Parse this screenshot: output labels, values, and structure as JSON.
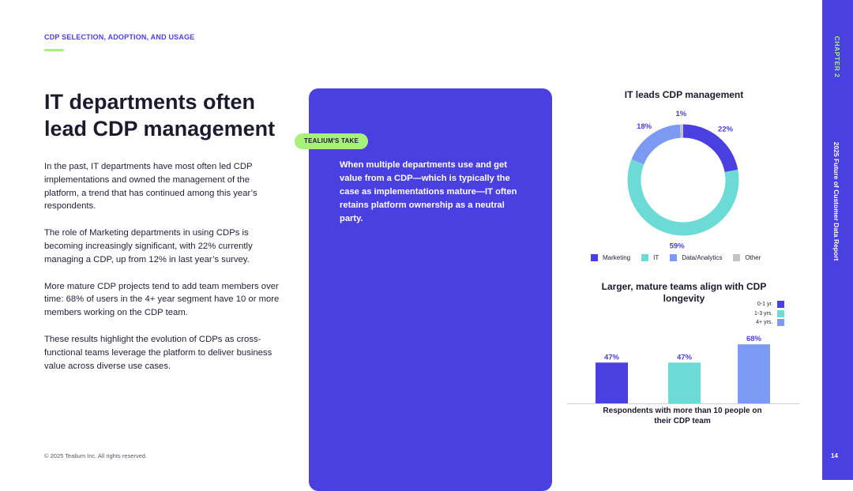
{
  "section_label": "CDP SELECTION, ADOPTION, AND USAGE",
  "headline": "IT departments often lead CDP management",
  "body_paragraphs": [
    "In the past, IT departments have most often led CDP implementations and owned the management of the platform, a trend that has continued among this year’s respondents.",
    "The role of Marketing departments in using CDPs is becoming increasingly significant, with 22% currently managing a CDP, up from 12% in last year’s survey.",
    "More mature CDP projects tend to add team members over time: 68% of users in the 4+ year segment have 10 or more members working on the CDP team.",
    "These results highlight the evolution of CDPs as cross-functional teams leverage the platform to deliver business value across diverse use cases."
  ],
  "footer_copyright": "© 2025 Tealium Inc. All rights reserved.",
  "take": {
    "badge": "TEALIUM'S TAKE",
    "text": "When multiple departments use and get value from a CDP—which is typically the case as implementations mature—IT often retains platform ownership as a neutral party."
  },
  "side": {
    "chapter": "CHAPTER 2",
    "report": "2025 Future of Customer Data Report",
    "page_number": "14"
  },
  "colors": {
    "brand_purple": "#4a3fe0",
    "accent_green": "#a7f07a",
    "teal": "#6ddbd5",
    "light_blue": "#7c9af2",
    "gray": "#c4c4c4"
  },
  "chart_data": [
    {
      "type": "pie",
      "title": "IT leads CDP management",
      "categories": [
        "Marketing",
        "IT",
        "Data/Analytics",
        "Other"
      ],
      "values": [
        22,
        59,
        18,
        1
      ],
      "labels": [
        "22%",
        "59%",
        "18%",
        "1%"
      ],
      "colors": [
        "#4a3fe0",
        "#6ddbd5",
        "#7c9af2",
        "#c4c4c4"
      ],
      "legend_position": "bottom"
    },
    {
      "type": "bar",
      "title": "Larger, mature teams align with CDP longevity",
      "xlabel": "Respondents with more than 10 people on their CDP team",
      "categories": [
        "0-1 yr.",
        "1-3 yrs.",
        "4+ yrs."
      ],
      "values": [
        47,
        47,
        68
      ],
      "labels": [
        "47%",
        "47%",
        "68%"
      ],
      "colors": [
        "#4a3fe0",
        "#6ddbd5",
        "#7c9af2"
      ],
      "ylim": [
        0,
        100
      ],
      "legend_position": "top-right"
    }
  ]
}
